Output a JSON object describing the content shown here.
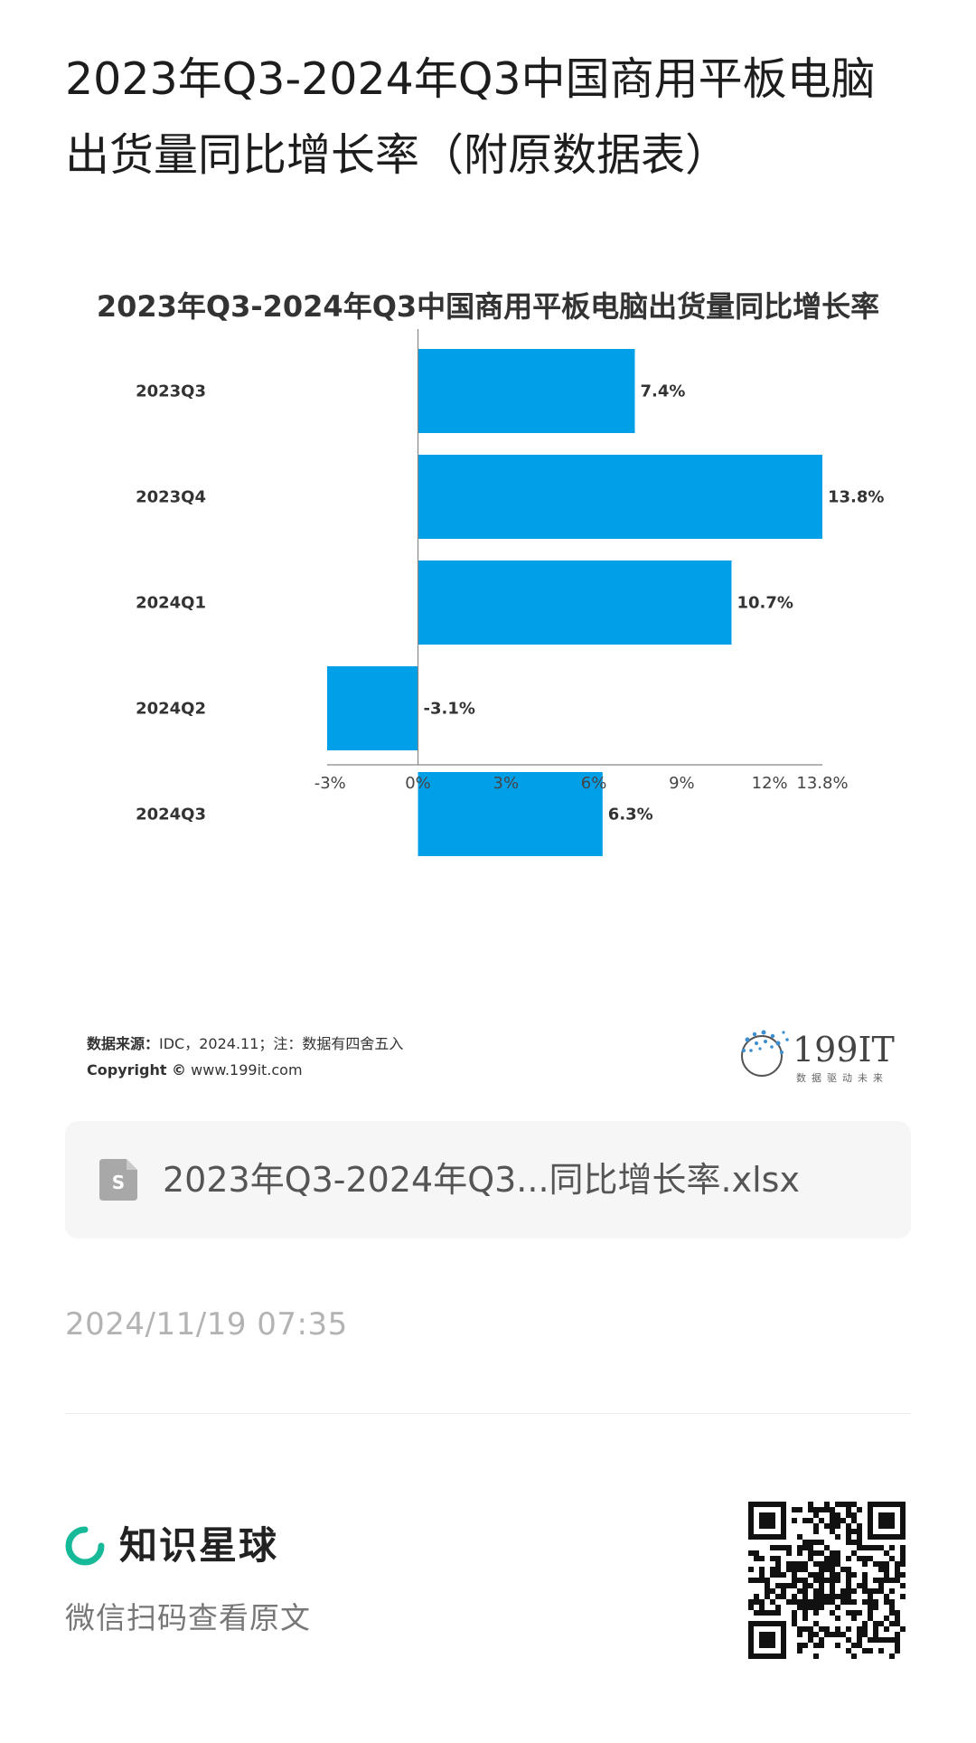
{
  "page": {
    "title": "2023年Q3-2024年Q3中国商用平板电脑出货量同比增长率（附原数据表）"
  },
  "chart_data": {
    "type": "bar",
    "orientation": "horizontal",
    "title": "2023年Q3-2024年Q3中国商用平板电脑出货量同比增长率",
    "categories": [
      "2023Q3",
      "2023Q4",
      "2024Q1",
      "2024Q2",
      "2024Q3"
    ],
    "values": [
      7.4,
      13.8,
      10.7,
      -3.1,
      6.3
    ],
    "value_labels": [
      "7.4%",
      "13.8%",
      "10.7%",
      "-3.1%",
      "6.3%"
    ],
    "x_ticks": [
      -3,
      0,
      3,
      6,
      9,
      12,
      13.8
    ],
    "x_tick_labels": [
      "-3%",
      "0%",
      "3%",
      "6%",
      "9%",
      "12%",
      "13.8%"
    ],
    "xlim": [
      -3.1,
      13.8
    ],
    "bar_color": "#00a0e9",
    "grid": false,
    "legend": "none",
    "source_label": "数据来源：",
    "source_text": "IDC，2024.11；注：数据有四舍五入",
    "copyright_label": "Copyright ©",
    "copyright_url": "www.199it.com",
    "logo_text": "199IT",
    "logo_slogan": "数据驱动未来"
  },
  "attachment": {
    "icon": "spreadsheet-file-icon",
    "filename": "2023年Q3-2024年Q3...同比增长率.xlsx"
  },
  "timestamp": "2024/11/19 07:35",
  "footer": {
    "brand_icon": "zsxq-ring-icon",
    "brand_color": "#16b998",
    "brand_name": "知识星球",
    "scan_hint": "微信扫码查看原文",
    "qr_icon": "qr-code-icon"
  }
}
